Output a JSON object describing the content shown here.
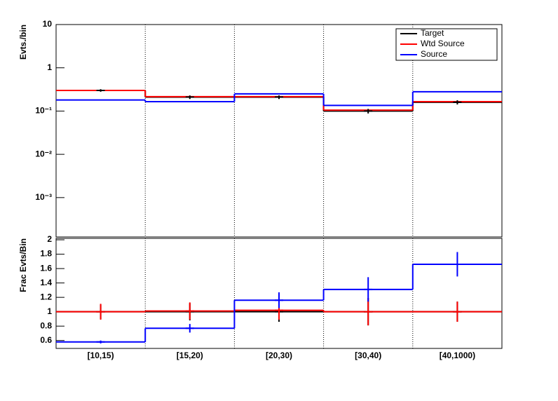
{
  "chart_data": [
    {
      "type": "step",
      "ylabel": "Evts./bin",
      "log_y": true,
      "ylim": [
        0.000123,
        10
      ],
      "yticks": [
        {
          "value": 10,
          "label": "10"
        },
        {
          "value": 1,
          "label": "1"
        },
        {
          "value": 0.1,
          "label": "10⁻¹"
        },
        {
          "value": 0.01,
          "label": "10⁻²"
        },
        {
          "value": 0.001,
          "label": "10⁻³"
        }
      ],
      "xgrid": true,
      "legend": "top-right",
      "series": [
        {
          "name": "Target",
          "color": "#000000",
          "values": [
            0.3,
            0.21,
            0.21,
            0.1,
            0.16
          ],
          "errors": [
            0.02,
            0.02,
            0.02,
            0.012,
            0.018
          ]
        },
        {
          "name": "Wtd Source",
          "color": "#ff0000",
          "values": [
            0.3,
            0.215,
            0.215,
            0.105,
            0.165
          ]
        },
        {
          "name": "Source",
          "color": "#0000ff",
          "values": [
            0.18,
            0.165,
            0.25,
            0.135,
            0.28
          ]
        }
      ]
    },
    {
      "type": "step",
      "ylabel": "Frac Evts/Bin",
      "log_y": false,
      "categories": [
        "[10,15)",
        "[15,20)",
        "[20,30)",
        "[30,40)",
        "[40,1000)"
      ],
      "ylim": [
        0.49,
        2.02
      ],
      "yticks": [
        0.6,
        0.8,
        1,
        1.2,
        1.4,
        1.6,
        1.8,
        2
      ],
      "xgrid": true,
      "series": [
        {
          "color": "#000000",
          "values": [
            1,
            1,
            1,
            1,
            1
          ],
          "errors": [
            0.1,
            0.12,
            0.14,
            0.19,
            0.14
          ]
        },
        {
          "color": "#ff0000",
          "values": [
            1,
            1.01,
            1.02,
            1,
            1
          ],
          "errors": [
            0.11,
            0.12,
            0.13,
            0.19,
            0.14
          ]
        },
        {
          "color": "#0000ff",
          "values": [
            0.58,
            0.77,
            1.16,
            1.31,
            1.66
          ],
          "errors": [
            0.02,
            0.06,
            0.11,
            0.17,
            0.17
          ]
        }
      ]
    }
  ]
}
